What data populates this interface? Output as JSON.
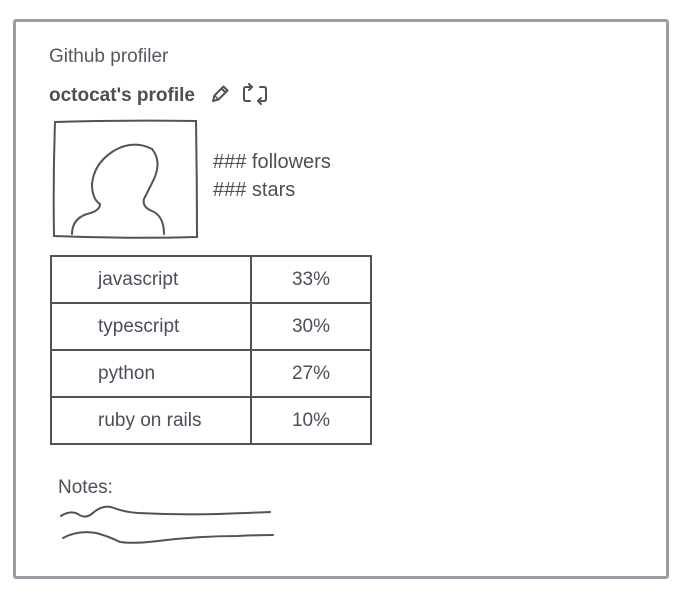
{
  "app": {
    "title": "Github profiler"
  },
  "profile": {
    "name": "octocat's profile",
    "followers": "### followers",
    "stars": "### stars"
  },
  "icons": {
    "edit": "pencil-icon",
    "refresh": "refresh-icon",
    "avatar": "user-silhouette-icon"
  },
  "languages": [
    {
      "name": "javascript",
      "percent": "33%"
    },
    {
      "name": "typescript",
      "percent": "30%"
    },
    {
      "name": "python",
      "percent": "27%"
    },
    {
      "name": "ruby on rails",
      "percent": "10%"
    }
  ],
  "notes": {
    "label": "Notes:"
  },
  "colors": {
    "stroke": "#4f545b",
    "frame": "#9a9da3",
    "text": "#4a4f58"
  }
}
